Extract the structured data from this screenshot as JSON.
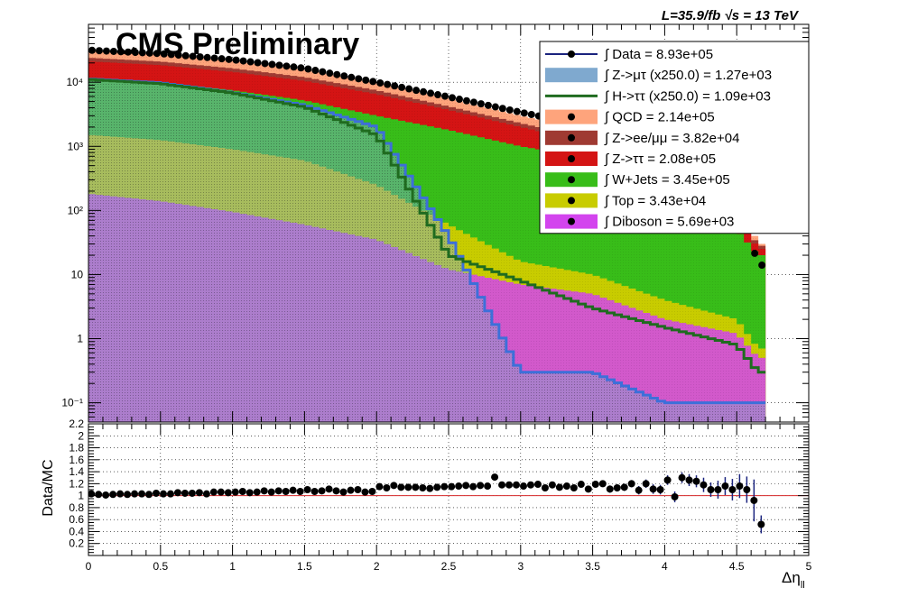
{
  "chart_data": [
    {
      "type": "area",
      "title": "CMS Preliminary",
      "subtitle": "L=35.9/fb  √s = 13 TeV",
      "xlabel": "",
      "ylabel": "",
      "yscale": "log",
      "xlim": [
        0,
        5
      ],
      "ylim": [
        0.05,
        80000
      ],
      "grid": true,
      "legend_position": "top-right",
      "yticks": [
        "10⁻¹",
        "1",
        "10",
        "10²",
        "10³",
        "10⁴"
      ],
      "legend": [
        {
          "label": "∫ Data = 8.93e+05",
          "color": "#000000",
          "style": "marker"
        },
        {
          "label": "∫ Z->μτ (x250.0) = 1.27e+03",
          "color": "#7fa9cf",
          "style": "fill"
        },
        {
          "label": "∫ H->ττ (x250.0) = 1.09e+03",
          "color": "#1f6b1f",
          "style": "line"
        },
        {
          "label": "∫ QCD = 2.14e+05",
          "color": "#fea47c",
          "style": "fill"
        },
        {
          "label": "∫ Z->ee/μμ = 3.82e+04",
          "color": "#9f3a32",
          "style": "fill"
        },
        {
          "label": "∫ Z->ττ = 2.08e+05",
          "color": "#d41414",
          "style": "fill"
        },
        {
          "label": "∫ W+Jets = 3.45e+05",
          "color": "#38bd19",
          "style": "fill"
        },
        {
          "label": "∫ Top = 3.43e+04",
          "color": "#c8cc00",
          "style": "fill"
        },
        {
          "label": "∫ Diboson = 5.69e+03",
          "color": "#d344ee",
          "style": "fill"
        }
      ],
      "x": [
        0.02,
        0.5,
        1.0,
        1.5,
        2.0,
        2.5,
        3.0,
        3.5,
        4.0,
        4.5,
        4.65
      ],
      "series": [
        {
          "name": "Diboson",
          "color": "#d344ee",
          "values": [
            180,
            140,
            95,
            60,
            35,
            12,
            7,
            5,
            2,
            1.2,
            0.5
          ]
        },
        {
          "name": "Top",
          "color": "#c8cc00",
          "values": [
            1500,
            1250,
            900,
            600,
            250,
            60,
            16,
            10,
            4,
            2,
            0.7
          ]
        },
        {
          "name": "W+Jets",
          "color": "#38bd19",
          "values": [
            11500,
            10000,
            7500,
            5200,
            3000,
            1800,
            1000,
            650,
            200,
            50,
            20
          ]
        },
        {
          "name": "Z->ττ",
          "color": "#d41414",
          "values": [
            21000,
            18500,
            14500,
            10500,
            6500,
            3700,
            2000,
            1100,
            350,
            80,
            25
          ]
        },
        {
          "name": "Z->ee/μμ",
          "color": "#9f3a32",
          "values": [
            24000,
            21000,
            16500,
            12000,
            7500,
            4200,
            2300,
            1300,
            400,
            95,
            28
          ]
        },
        {
          "name": "QCD",
          "color": "#fea47c",
          "values": [
            31000,
            27500,
            21500,
            15500,
            9700,
            5500,
            3000,
            1750,
            600,
            170,
            30
          ]
        },
        {
          "name": "H->ττ",
          "color": "#1f6b1f",
          "values": [
            11000,
            9500,
            6800,
            4100,
            1500,
            20,
            8,
            3,
            1.5,
            0.8,
            0.3
          ]
        },
        {
          "name": "Z->μτ",
          "color": "#3d6fd9",
          "values": [
            11200,
            9800,
            6900,
            4400,
            2000,
            40,
            0.3,
            0.3,
            0.1,
            0.1,
            0.1
          ]
        },
        {
          "name": "Data",
          "color": "#000000",
          "values": [
            31500,
            28000,
            22500,
            16500,
            10000,
            5900,
            3400,
            2000,
            700,
            180,
            14
          ]
        }
      ]
    },
    {
      "type": "scatter",
      "xlabel": "Δη",
      "xlabel_sub": "ll",
      "ylabel": "Data/MC",
      "xlim": [
        0,
        5
      ],
      "ylim": [
        0,
        2.2
      ],
      "grid": true,
      "xticks": [
        "0",
        "0.5",
        "1",
        "1.5",
        "2",
        "2.5",
        "3",
        "3.5",
        "4",
        "4.5",
        "5"
      ],
      "yticks": [
        "0.2",
        "0.4",
        "0.6",
        "0.8",
        "1",
        "1.2",
        "1.4",
        "1.6",
        "1.8",
        "2",
        "2.2"
      ],
      "reference_line": 1.0,
      "x": [
        0.02,
        0.07,
        0.12,
        0.17,
        0.22,
        0.27,
        0.32,
        0.37,
        0.42,
        0.47,
        0.52,
        0.57,
        0.62,
        0.67,
        0.72,
        0.77,
        0.82,
        0.87,
        0.92,
        0.97,
        1.02,
        1.07,
        1.12,
        1.17,
        1.22,
        1.27,
        1.32,
        1.37,
        1.42,
        1.47,
        1.52,
        1.57,
        1.62,
        1.67,
        1.72,
        1.77,
        1.82,
        1.87,
        1.92,
        1.97,
        2.02,
        2.07,
        2.12,
        2.17,
        2.22,
        2.27,
        2.32,
        2.37,
        2.42,
        2.47,
        2.52,
        2.57,
        2.62,
        2.67,
        2.72,
        2.77,
        2.82,
        2.87,
        2.92,
        2.97,
        3.02,
        3.07,
        3.12,
        3.17,
        3.22,
        3.27,
        3.32,
        3.37,
        3.42,
        3.47,
        3.52,
        3.57,
        3.62,
        3.67,
        3.72,
        3.77,
        3.82,
        3.87,
        3.92,
        3.97,
        4.02,
        4.07,
        4.12,
        4.17,
        4.22,
        4.27,
        4.32,
        4.37,
        4.42,
        4.47,
        4.52,
        4.57,
        4.62,
        4.67
      ],
      "y": [
        1.03,
        1.02,
        1.01,
        1.02,
        1.03,
        1.02,
        1.03,
        1.03,
        1.02,
        1.04,
        1.03,
        1.03,
        1.05,
        1.04,
        1.04,
        1.05,
        1.03,
        1.06,
        1.06,
        1.05,
        1.06,
        1.07,
        1.05,
        1.06,
        1.08,
        1.06,
        1.08,
        1.07,
        1.09,
        1.07,
        1.1,
        1.07,
        1.08,
        1.11,
        1.08,
        1.06,
        1.09,
        1.1,
        1.06,
        1.07,
        1.15,
        1.13,
        1.17,
        1.14,
        1.14,
        1.14,
        1.13,
        1.12,
        1.14,
        1.15,
        1.15,
        1.16,
        1.17,
        1.15,
        1.17,
        1.16,
        1.31,
        1.18,
        1.18,
        1.18,
        1.16,
        1.18,
        1.19,
        1.13,
        1.18,
        1.14,
        1.16,
        1.13,
        1.19,
        1.11,
        1.19,
        1.2,
        1.11,
        1.13,
        1.14,
        1.2,
        1.09,
        1.2,
        1.11,
        1.1,
        1.26,
        0.98,
        1.3,
        1.26,
        1.24,
        1.18,
        1.1,
        1.1,
        1.16,
        1.1,
        1.16,
        1.1,
        0.92,
        0.52
      ],
      "y_err": [
        0.01,
        0.01,
        0.01,
        0.01,
        0.01,
        0.01,
        0.01,
        0.01,
        0.01,
        0.01,
        0.01,
        0.01,
        0.01,
        0.01,
        0.01,
        0.01,
        0.01,
        0.01,
        0.01,
        0.01,
        0.01,
        0.01,
        0.01,
        0.01,
        0.01,
        0.01,
        0.01,
        0.01,
        0.01,
        0.01,
        0.01,
        0.01,
        0.01,
        0.01,
        0.01,
        0.01,
        0.01,
        0.01,
        0.01,
        0.01,
        0.01,
        0.01,
        0.01,
        0.01,
        0.01,
        0.01,
        0.02,
        0.02,
        0.02,
        0.02,
        0.02,
        0.02,
        0.02,
        0.02,
        0.02,
        0.02,
        0.02,
        0.02,
        0.02,
        0.03,
        0.03,
        0.03,
        0.03,
        0.03,
        0.03,
        0.04,
        0.04,
        0.04,
        0.04,
        0.05,
        0.05,
        0.05,
        0.06,
        0.06,
        0.06,
        0.06,
        0.07,
        0.07,
        0.08,
        0.08,
        0.08,
        0.09,
        0.09,
        0.1,
        0.1,
        0.12,
        0.12,
        0.15,
        0.15,
        0.18,
        0.2,
        0.22,
        0.35,
        0.15
      ]
    }
  ]
}
